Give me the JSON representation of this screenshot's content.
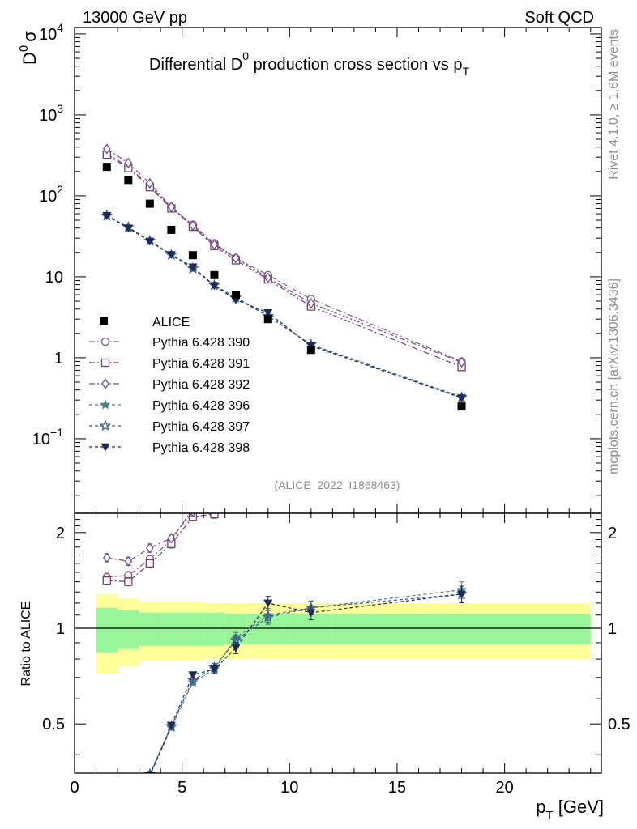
{
  "header": {
    "energy": "13000 GeV pp",
    "process": "Soft QCD"
  },
  "side": {
    "rivet": "Rivet 4.1.0, ≥ 1.6M events",
    "mcplots": "mcplots.cern.ch [arXiv:1306.3436]"
  },
  "chart_data": {
    "type": "scatter",
    "title_prefix": "Differential D",
    "title_sup": "0",
    "title_mid": " production cross section vs p",
    "title_sub": "T",
    "ylabel_main": "D",
    "ylabel_sup": "0",
    "ylabel_sigma": "σ",
    "ylabel_ratio": "Ratio to ALICE",
    "xlabel_main": "p",
    "xlabel_sub": "T",
    "xlabel_unit": " [GeV]",
    "analysis_id": "(ALICE_2022_I1868463)",
    "xlim": [
      0,
      24.5
    ],
    "ylim": [
      0.012,
      12000
    ],
    "ratio_ylim": [
      0.35,
      2.3
    ],
    "x_ticks": [
      "0",
      "5",
      "10",
      "15",
      "20"
    ],
    "x_tick_values": [
      0,
      5,
      10,
      15,
      20
    ],
    "y_ticks": [
      {
        "base": "10",
        "exp": "4",
        "value": 10000
      },
      {
        "base": "10",
        "exp": "3",
        "value": 1000
      },
      {
        "base": "10",
        "exp": "2",
        "value": 100
      },
      {
        "base": "10",
        "exp": "",
        "value": 10
      },
      {
        "base": "1",
        "exp": "",
        "value": 1
      },
      {
        "base": "10",
        "exp": "−1",
        "value": 0.1
      }
    ],
    "ratio_ticks": [
      {
        "label": "2",
        "value": 2
      },
      {
        "label": "1",
        "value": 1
      },
      {
        "label": "0.5",
        "value": 0.5
      }
    ],
    "x": [
      1.5,
      2.5,
      3.5,
      4.5,
      5.5,
      6.5,
      7.5,
      9,
      11,
      18
    ],
    "bins": [
      [
        1,
        2
      ],
      [
        2,
        3
      ],
      [
        3,
        4
      ],
      [
        4,
        5
      ],
      [
        5,
        6
      ],
      [
        6,
        7
      ],
      [
        7,
        8
      ],
      [
        8,
        10
      ],
      [
        10,
        12
      ],
      [
        12,
        24
      ]
    ],
    "data": {
      "name": "ALICE",
      "values": [
        228,
        157,
        80,
        38,
        18.5,
        10.5,
        6.0,
        3.0,
        1.25,
        0.25
      ]
    },
    "band_inner": [
      0.16,
      0.14,
      0.12,
      0.12,
      0.12,
      0.12,
      0.11,
      0.11,
      0.11,
      0.11
    ],
    "band_outer": [
      0.28,
      0.24,
      0.21,
      0.21,
      0.21,
      0.2,
      0.2,
      0.2,
      0.2,
      0.2
    ],
    "series": [
      {
        "name": "Pythia 6.428 390",
        "color": "#8c5a7a",
        "marker": "circle-open",
        "dash": "7,3,2,3",
        "values": [
          330,
          230,
          132,
          72,
          44,
          26,
          17,
          10.5,
          5.3,
          0.9
        ],
        "ratio_err": [
          0.03,
          0.03,
          0.03,
          0.03,
          0.03,
          0.03,
          0.04,
          0.05,
          0.06,
          0.06
        ]
      },
      {
        "name": "Pythia 6.428 391",
        "color": "#7a3f64",
        "marker": "square-open",
        "dash": "7,3,2,3",
        "values": [
          322,
          220,
          128,
          70,
          41.5,
          24,
          16,
          9.3,
          4.3,
          0.77
        ],
        "ratio_err": [
          0.03,
          0.03,
          0.03,
          0.03,
          0.03,
          0.03,
          0.04,
          0.05,
          0.06,
          0.06
        ]
      },
      {
        "name": "Pythia 6.428 392",
        "color": "#6a4a9a",
        "marker": "diamond-open",
        "dash": "7,3,2,3",
        "values": [
          380,
          255,
          143,
          73,
          43,
          25,
          17,
          9.7,
          4.7,
          0.88
        ],
        "ratio_err": [
          0.03,
          0.03,
          0.03,
          0.03,
          0.03,
          0.03,
          0.04,
          0.05,
          0.06,
          0.06
        ]
      },
      {
        "name": "Pythia 6.428 396",
        "color": "#4a7e8c",
        "marker": "star",
        "dash": "4,3",
        "values": [
          56,
          40,
          27.5,
          18.5,
          12.5,
          7.8,
          5.6,
          3.3,
          1.45,
          0.33
        ],
        "ratio_err": [
          0.02,
          0.02,
          0.02,
          0.02,
          0.02,
          0.03,
          0.04,
          0.05,
          0.05,
          0.06
        ]
      },
      {
        "name": "Pythia 6.428 397",
        "color": "#3a5c8a",
        "marker": "star-open",
        "dash": "4,3",
        "values": [
          57,
          41,
          27.8,
          18.7,
          12.7,
          7.9,
          5.5,
          3.25,
          1.45,
          0.32
        ],
        "ratio_err": [
          0.02,
          0.02,
          0.02,
          0.02,
          0.02,
          0.03,
          0.04,
          0.05,
          0.05,
          0.06
        ]
      },
      {
        "name": "Pythia 6.428 398",
        "color": "#1f2a5a",
        "marker": "triangle-down",
        "dash": "4,3",
        "values": [
          57,
          40,
          27.5,
          18.8,
          13.2,
          7.8,
          5.2,
          3.6,
          1.4,
          0.32
        ],
        "ratio_err": [
          0.02,
          0.02,
          0.02,
          0.02,
          0.02,
          0.03,
          0.04,
          0.05,
          0.05,
          0.06
        ]
      }
    ]
  }
}
